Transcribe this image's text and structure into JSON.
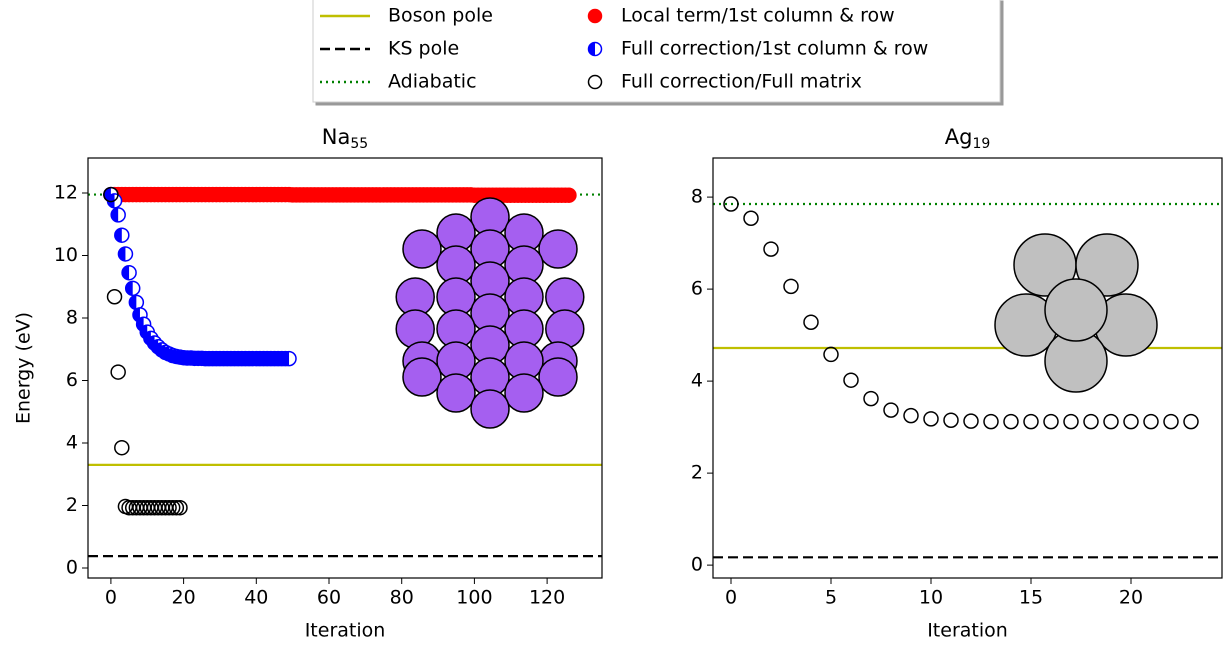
{
  "chart_data": [
    {
      "type": "scatter",
      "title": "Na",
      "title_subscript": "55",
      "xlabel": "Iteration",
      "ylabel": "Energy (eV)",
      "xlim": [
        -6.3,
        135.1
      ],
      "ylim": [
        -0.32,
        13.12
      ],
      "xticks": [
        0,
        20,
        40,
        60,
        80,
        100,
        120
      ],
      "yticks": [
        0,
        2,
        4,
        6,
        8,
        10,
        12
      ],
      "series": [
        {
          "name": "Boson pole",
          "color": "#bfbf00",
          "line": "solid",
          "y": 3.3
        },
        {
          "name": "KS pole",
          "color": "#000000",
          "line": "dashed",
          "y": 0.38
        },
        {
          "name": "Adiabatic",
          "color": "#008000",
          "line": "dotted",
          "y": 11.95
        },
        {
          "name": "Local term/1st column & row",
          "color": "#ff0000",
          "marker": "filled",
          "x": [
            0,
            1,
            2,
            3,
            4,
            5,
            6,
            7,
            8,
            9,
            10,
            11,
            12,
            13,
            14,
            15,
            16,
            17,
            18,
            19,
            20,
            21,
            22,
            23,
            24,
            25,
            26,
            27,
            28,
            29,
            30,
            31,
            32,
            33,
            34,
            35,
            36,
            37,
            38,
            39,
            40,
            41,
            42,
            43,
            44,
            45,
            46,
            47,
            48,
            49,
            50,
            51,
            52,
            53,
            54,
            55,
            56,
            57,
            58,
            59,
            60,
            61,
            62,
            63,
            64,
            65,
            66,
            67,
            68,
            69,
            70,
            71,
            72,
            73,
            74,
            75,
            76,
            77,
            78,
            79,
            80,
            81,
            82,
            83,
            84,
            85,
            86,
            87,
            88,
            89,
            90,
            91,
            92,
            93,
            94,
            95,
            96,
            97,
            98,
            99,
            100,
            101,
            102,
            103,
            104,
            105,
            106,
            107,
            108,
            109,
            110,
            111,
            112,
            113,
            114,
            115,
            116,
            117,
            118,
            119,
            120,
            121,
            122,
            123,
            124,
            125,
            126
          ],
          "values": [
            11.95,
            11.95,
            11.95,
            11.95,
            11.95,
            11.95,
            11.95,
            11.95,
            11.95,
            11.95,
            11.95,
            11.95,
            11.95,
            11.95,
            11.95,
            11.95,
            11.95,
            11.95,
            11.95,
            11.95,
            11.95,
            11.95,
            11.95,
            11.95,
            11.95,
            11.95,
            11.95,
            11.95,
            11.95,
            11.95,
            11.95,
            11.95,
            11.95,
            11.95,
            11.95,
            11.95,
            11.95,
            11.95,
            11.95,
            11.95,
            11.95,
            11.95,
            11.95,
            11.95,
            11.95,
            11.95,
            11.95,
            11.95,
            11.95,
            11.95,
            11.94,
            11.94,
            11.94,
            11.94,
            11.94,
            11.94,
            11.94,
            11.94,
            11.94,
            11.94,
            11.94,
            11.94,
            11.94,
            11.94,
            11.94,
            11.94,
            11.94,
            11.94,
            11.94,
            11.94,
            11.94,
            11.94,
            11.94,
            11.94,
            11.94,
            11.94,
            11.94,
            11.94,
            11.94,
            11.94,
            11.94,
            11.94,
            11.94,
            11.94,
            11.94,
            11.94,
            11.94,
            11.94,
            11.94,
            11.94,
            11.94,
            11.94,
            11.94,
            11.94,
            11.94,
            11.94,
            11.94,
            11.94,
            11.94,
            11.94,
            11.93,
            11.93,
            11.93,
            11.93,
            11.93,
            11.93,
            11.93,
            11.93,
            11.93,
            11.93,
            11.93,
            11.93,
            11.93,
            11.93,
            11.93,
            11.93,
            11.93,
            11.93,
            11.93,
            11.93,
            11.93,
            11.93,
            11.93,
            11.93,
            11.93,
            11.93,
            11.93
          ]
        },
        {
          "name": "Full correction/1st column & row",
          "color": "#0000ff",
          "marker": "half",
          "x": [
            0,
            1,
            2,
            3,
            4,
            5,
            6,
            7,
            8,
            9,
            10,
            11,
            12,
            13,
            14,
            15,
            16,
            17,
            18,
            19,
            20,
            21,
            22,
            23,
            24,
            25,
            26,
            27,
            28,
            29,
            30,
            31,
            32,
            33,
            34,
            35,
            36,
            37,
            38,
            39,
            40,
            41,
            42,
            43,
            44,
            45,
            46,
            47,
            48,
            49
          ],
          "values": [
            11.95,
            11.75,
            11.3,
            10.65,
            10.05,
            9.45,
            8.95,
            8.5,
            8.1,
            7.8,
            7.55,
            7.35,
            7.2,
            7.08,
            6.98,
            6.9,
            6.85,
            6.8,
            6.77,
            6.75,
            6.73,
            6.72,
            6.72,
            6.71,
            6.71,
            6.71,
            6.7,
            6.7,
            6.7,
            6.7,
            6.7,
            6.7,
            6.7,
            6.7,
            6.7,
            6.7,
            6.7,
            6.7,
            6.7,
            6.7,
            6.7,
            6.7,
            6.7,
            6.7,
            6.7,
            6.7,
            6.7,
            6.7,
            6.7,
            6.7
          ]
        },
        {
          "name": "Full correction/Full matrix",
          "color": "#000000",
          "marker": "open",
          "x": [
            0,
            1,
            2,
            3,
            4,
            5,
            6,
            7,
            8,
            9,
            10,
            11,
            12,
            13,
            14,
            15,
            16,
            17,
            18,
            19
          ],
          "values": [
            11.95,
            8.68,
            6.27,
            3.85,
            1.97,
            1.93,
            1.93,
            1.93,
            1.93,
            1.93,
            1.93,
            1.93,
            1.93,
            1.93,
            1.93,
            1.93,
            1.93,
            1.93,
            1.93,
            1.93
          ]
        }
      ]
    },
    {
      "type": "scatter",
      "title": "Ag",
      "title_subscript": "19",
      "xlabel": "Iteration",
      "xlim": [
        -0.9,
        24.55
      ],
      "ylim": [
        -0.28,
        8.85
      ],
      "xticks": [
        0,
        5,
        10,
        15,
        20
      ],
      "yticks": [
        0,
        2,
        4,
        6,
        8
      ],
      "series": [
        {
          "color": "#bfbf00",
          "line": "solid",
          "y": 4.72
        },
        {
          "color": "#000000",
          "line": "dashed",
          "y": 0.17
        },
        {
          "color": "#008000",
          "line": "dotted",
          "y": 7.85
        },
        {
          "color": "#000000",
          "marker": "open",
          "x": [
            0,
            1,
            2,
            3,
            4,
            5,
            6,
            7,
            8,
            9,
            10,
            11,
            12,
            13,
            14,
            15,
            16,
            17,
            18,
            19,
            20,
            21,
            22,
            23
          ],
          "values": [
            7.85,
            7.54,
            6.87,
            6.06,
            5.28,
            4.58,
            4.02,
            3.62,
            3.37,
            3.25,
            3.18,
            3.15,
            3.13,
            3.12,
            3.12,
            3.12,
            3.12,
            3.12,
            3.12,
            3.12,
            3.12,
            3.12,
            3.12,
            3.12
          ]
        }
      ]
    }
  ]
}
